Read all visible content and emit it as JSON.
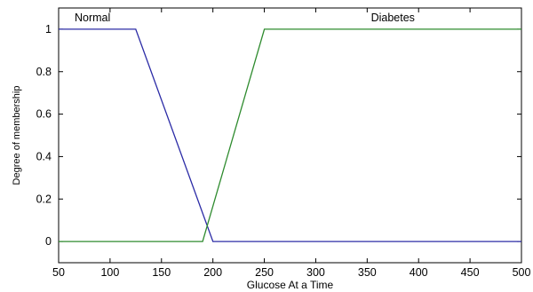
{
  "chart_data": {
    "type": "line",
    "title": "",
    "xlabel": "Glucose At a Time",
    "ylabel": "Degree of membership",
    "xlim": [
      50,
      500
    ],
    "ylim": [
      -0.1,
      1.1
    ],
    "xticks": [
      50,
      100,
      150,
      200,
      250,
      300,
      350,
      400,
      450,
      500
    ],
    "yticks": [
      0,
      0.2,
      0.4,
      0.6,
      0.8,
      1
    ],
    "grid": false,
    "series": [
      {
        "name": "Normal",
        "color": "#2b2ba6",
        "x": [
          50,
          125,
          200,
          500
        ],
        "y": [
          1,
          1,
          0,
          0
        ]
      },
      {
        "name": "Diabetes",
        "color": "#2e8b2e",
        "x": [
          50,
          190,
          250,
          500
        ],
        "y": [
          0,
          0,
          1,
          1
        ]
      }
    ]
  }
}
